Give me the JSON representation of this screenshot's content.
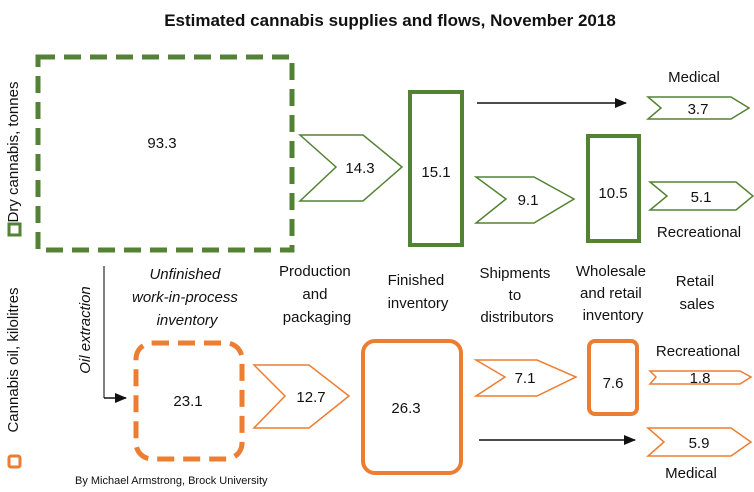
{
  "title": "Estimated cannabis supplies and flows, November 2018",
  "axes": {
    "dry": "Dry cannabis, tonnes",
    "oil": "Cannabis oil, kilolitres"
  },
  "stages": {
    "unfinished": [
      "Unfinished",
      "work-in-process",
      "inventory"
    ],
    "production": [
      "Production",
      "and",
      "packaging"
    ],
    "finished": [
      "Finished",
      "inventory"
    ],
    "shipments": [
      "Shipments",
      "to",
      "distributors"
    ],
    "wholesale": [
      "Wholesale",
      "and retail",
      "inventory"
    ],
    "retail": [
      "Retail",
      "sales"
    ]
  },
  "oil_extraction": "Oil extraction",
  "dry": {
    "unfinished": "93.3",
    "production": "14.3",
    "finished": "15.1",
    "shipments": "9.1",
    "wholesale": "10.5",
    "medical": "3.7",
    "recreational": "5.1"
  },
  "oil": {
    "unfinished": "23.1",
    "production": "12.7",
    "finished": "26.3",
    "shipments": "7.1",
    "wholesale": "7.6",
    "recreational": "1.8",
    "medical": "5.9"
  },
  "labels": {
    "medical": "Medical",
    "recreational": "Recreational"
  },
  "credit": "By Michael Armstrong, Brock University",
  "colors": {
    "dry": "#548235",
    "oil": "#ed7d31"
  }
}
